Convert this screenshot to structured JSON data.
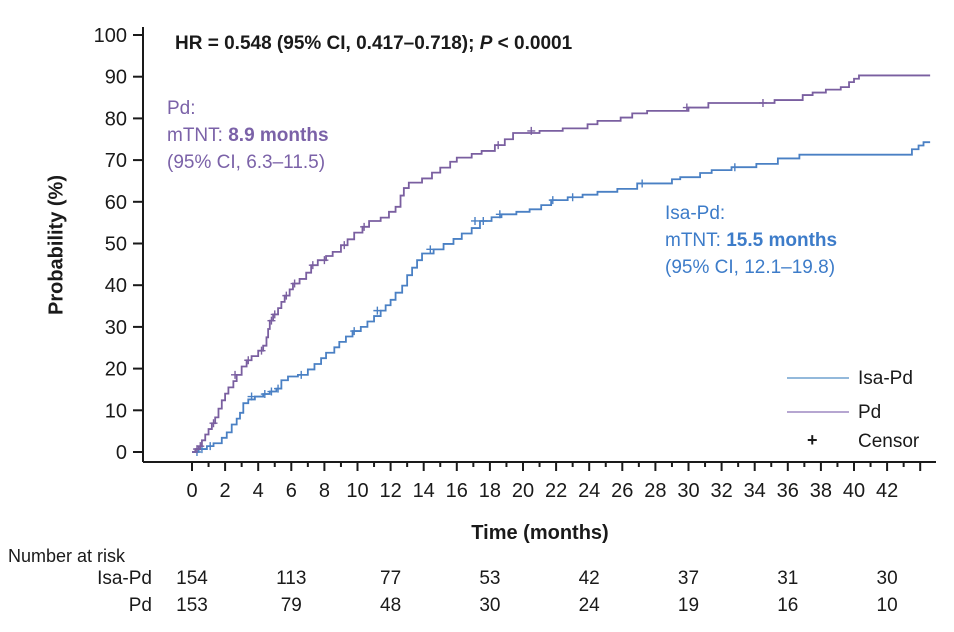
{
  "colors": {
    "isa_pd_curve": "#4a80c4",
    "pd_curve": "#7a5fa0",
    "isa_pd_text": "#3d7cc9",
    "pd_text": "#7b62a8",
    "isa_pd_legend_line": "#93b9db",
    "pd_legend_line": "#b6a6d1",
    "axis": "#1a1a1a"
  },
  "annotations": {
    "hr": {
      "before_p": "HR = 0.548 (95% CI, 0.417–0.718); ",
      "p": "P",
      "after_p": " < 0.0001"
    },
    "pd": {
      "line1": "Pd:",
      "line2_prefix": "mTNT: ",
      "line2_bold": "8.9 months",
      "line3": "(95% CI, 6.3–11.5)"
    },
    "isa_pd": {
      "line1": "Isa-Pd:",
      "line2_prefix": "mTNT: ",
      "line2_bold": "15.5 months",
      "line3": "(95% CI, 12.1–19.8)"
    }
  },
  "legend": {
    "items": [
      {
        "label": "Isa-Pd",
        "type": "line",
        "color": "#93b9db"
      },
      {
        "label": "Pd",
        "type": "line",
        "color": "#b6a6d1"
      },
      {
        "label": "Censor",
        "type": "marker",
        "symbol": "+"
      }
    ]
  },
  "risk_table": {
    "title": "Number at risk",
    "time_points": [
      0,
      6,
      12,
      18,
      24,
      30,
      36,
      42
    ],
    "rows": [
      {
        "label": "Isa-Pd",
        "values": [
          154,
          113,
          77,
          53,
          42,
          37,
          31,
          30
        ]
      },
      {
        "label": "Pd",
        "values": [
          153,
          79,
          48,
          30,
          24,
          19,
          16,
          10
        ]
      }
    ]
  },
  "chart_data": {
    "type": "line",
    "step": true,
    "title": "",
    "xlabel": "Time (months)",
    "ylabel": "Probability (%)",
    "xlim": [
      0,
      44.7
    ],
    "ylim": [
      0,
      100
    ],
    "x_tick_labels": [
      0,
      2,
      4,
      6,
      8,
      10,
      12,
      14,
      16,
      18,
      20,
      22,
      24,
      26,
      28,
      30,
      32,
      34,
      36,
      38,
      40,
      42
    ],
    "x_minor_tick_interval": 1,
    "x_minor_tick_max": 44,
    "y_ticks": [
      0,
      10,
      20,
      30,
      40,
      50,
      60,
      70,
      80,
      90,
      100
    ],
    "grid": false,
    "legend_position": "inside-lower-right",
    "end_x": 44.6,
    "series": [
      {
        "name": "Isa-Pd",
        "color": "#4a80c4",
        "points": [
          [
            0,
            0
          ],
          [
            0.4,
            0.7
          ],
          [
            0.9,
            1.4
          ],
          [
            1.3,
            2.1
          ],
          [
            1.8,
            3.4
          ],
          [
            2.1,
            4.7
          ],
          [
            2.4,
            6.6
          ],
          [
            2.7,
            8.0
          ],
          [
            2.9,
            9.4
          ],
          [
            3.1,
            11.7
          ],
          [
            3.4,
            12.6
          ],
          [
            3.8,
            13.3
          ],
          [
            4.3,
            13.9
          ],
          [
            4.7,
            14.5
          ],
          [
            5.1,
            15.2
          ],
          [
            5.4,
            17.2
          ],
          [
            5.8,
            18.1
          ],
          [
            6.4,
            18.5
          ],
          [
            7.0,
            19.8
          ],
          [
            7.4,
            21.1
          ],
          [
            7.8,
            22.5
          ],
          [
            8.1,
            23.8
          ],
          [
            8.6,
            25.1
          ],
          [
            8.9,
            26.4
          ],
          [
            9.3,
            27.7
          ],
          [
            9.7,
            29.0
          ],
          [
            10.2,
            30.0
          ],
          [
            10.6,
            31.3
          ],
          [
            11.0,
            32.6
          ],
          [
            11.4,
            33.9
          ],
          [
            11.7,
            35.2
          ],
          [
            12.0,
            36.5
          ],
          [
            12.3,
            38.2
          ],
          [
            12.7,
            39.9
          ],
          [
            13.0,
            42.4
          ],
          [
            13.3,
            44.2
          ],
          [
            13.6,
            46.0
          ],
          [
            13.9,
            47.6
          ],
          [
            14.6,
            48.6
          ],
          [
            15.2,
            49.9
          ],
          [
            15.8,
            51.1
          ],
          [
            16.3,
            52.4
          ],
          [
            16.9,
            53.7
          ],
          [
            17.4,
            55.4
          ],
          [
            18.1,
            56.3
          ],
          [
            18.7,
            57.0
          ],
          [
            19.6,
            57.6
          ],
          [
            20.4,
            58.2
          ],
          [
            21.1,
            59.2
          ],
          [
            21.7,
            60.4
          ],
          [
            22.7,
            61.1
          ],
          [
            23.6,
            61.7
          ],
          [
            24.5,
            62.4
          ],
          [
            25.7,
            63.1
          ],
          [
            26.9,
            64.4
          ],
          [
            29.0,
            65.4
          ],
          [
            29.5,
            65.9
          ],
          [
            30.7,
            66.9
          ],
          [
            31.4,
            67.6
          ],
          [
            32.6,
            68.3
          ],
          [
            34.1,
            69.1
          ],
          [
            35.4,
            70.4
          ],
          [
            36.7,
            71.3
          ],
          [
            43.5,
            72.6
          ],
          [
            43.9,
            73.5
          ],
          [
            44.2,
            74.3
          ]
        ],
        "censors": [
          [
            0.3,
            0.0
          ],
          [
            0.6,
            0.7
          ],
          [
            1.1,
            1.4
          ],
          [
            3.6,
            13.3
          ],
          [
            4.4,
            13.9
          ],
          [
            4.8,
            14.5
          ],
          [
            5.2,
            15.2
          ],
          [
            6.6,
            18.5
          ],
          [
            9.8,
            29.0
          ],
          [
            11.2,
            33.9
          ],
          [
            14.4,
            48.6
          ],
          [
            17.1,
            55.4
          ],
          [
            17.6,
            55.4
          ],
          [
            18.6,
            57.0
          ],
          [
            21.8,
            60.4
          ],
          [
            23.0,
            61.1
          ],
          [
            27.2,
            64.4
          ],
          [
            32.8,
            68.3
          ]
        ]
      },
      {
        "name": "Pd",
        "color": "#7a5fa0",
        "points": [
          [
            0,
            0
          ],
          [
            0.2,
            0.7
          ],
          [
            0.4,
            1.4
          ],
          [
            0.6,
            2.8
          ],
          [
            0.8,
            4.2
          ],
          [
            1.0,
            5.5
          ],
          [
            1.2,
            6.9
          ],
          [
            1.4,
            8.3
          ],
          [
            1.6,
            10.4
          ],
          [
            1.8,
            12.4
          ],
          [
            2.0,
            14.0
          ],
          [
            2.2,
            15.5
          ],
          [
            2.5,
            17.0
          ],
          [
            2.7,
            18.5
          ],
          [
            3.0,
            20.5
          ],
          [
            3.3,
            22.0
          ],
          [
            3.6,
            23.0
          ],
          [
            4.0,
            24.3
          ],
          [
            4.3,
            25.5
          ],
          [
            4.5,
            27.5
          ],
          [
            4.6,
            29.5
          ],
          [
            4.7,
            31.5
          ],
          [
            4.9,
            33.0
          ],
          [
            5.2,
            34.5
          ],
          [
            5.4,
            36.0
          ],
          [
            5.6,
            37.5
          ],
          [
            5.9,
            39.0
          ],
          [
            6.1,
            40.4
          ],
          [
            6.5,
            41.5
          ],
          [
            6.9,
            43.0
          ],
          [
            7.2,
            44.8
          ],
          [
            7.6,
            46.0
          ],
          [
            8.1,
            47.0
          ],
          [
            8.5,
            48.0
          ],
          [
            9.0,
            49.6
          ],
          [
            9.4,
            51.0
          ],
          [
            9.8,
            52.6
          ],
          [
            10.3,
            54.0
          ],
          [
            10.7,
            55.4
          ],
          [
            11.4,
            56.2
          ],
          [
            11.9,
            57.6
          ],
          [
            12.3,
            58.8
          ],
          [
            12.6,
            61.5
          ],
          [
            12.8,
            63.3
          ],
          [
            13.1,
            64.6
          ],
          [
            13.9,
            65.6
          ],
          [
            14.5,
            67.0
          ],
          [
            15.0,
            68.2
          ],
          [
            15.6,
            69.6
          ],
          [
            16.0,
            70.6
          ],
          [
            16.9,
            71.5
          ],
          [
            17.5,
            72.2
          ],
          [
            18.3,
            73.6
          ],
          [
            18.9,
            75.0
          ],
          [
            19.4,
            76.5
          ],
          [
            21.0,
            77.0
          ],
          [
            22.4,
            77.6
          ],
          [
            23.9,
            78.6
          ],
          [
            24.5,
            79.4
          ],
          [
            25.9,
            80.2
          ],
          [
            26.6,
            81.2
          ],
          [
            27.5,
            81.8
          ],
          [
            30.0,
            82.6
          ],
          [
            31.2,
            83.7
          ],
          [
            35.2,
            84.4
          ],
          [
            36.9,
            85.6
          ],
          [
            37.5,
            86.2
          ],
          [
            38.3,
            86.9
          ],
          [
            39.2,
            87.5
          ],
          [
            39.7,
            88.7
          ],
          [
            40.0,
            89.5
          ],
          [
            40.3,
            90.3
          ]
        ],
        "censors": [
          [
            0.3,
            0.7
          ],
          [
            0.5,
            1.4
          ],
          [
            1.3,
            6.9
          ],
          [
            2.6,
            18.5
          ],
          [
            3.4,
            22.0
          ],
          [
            4.2,
            24.3
          ],
          [
            4.8,
            31.5
          ],
          [
            5.0,
            33.0
          ],
          [
            5.7,
            37.5
          ],
          [
            6.2,
            40.4
          ],
          [
            7.3,
            44.8
          ],
          [
            8.0,
            46.0
          ],
          [
            9.2,
            49.6
          ],
          [
            10.4,
            54.0
          ],
          [
            18.5,
            73.6
          ],
          [
            20.5,
            77.0
          ],
          [
            29.9,
            82.6
          ],
          [
            34.5,
            83.7
          ]
        ]
      }
    ]
  }
}
